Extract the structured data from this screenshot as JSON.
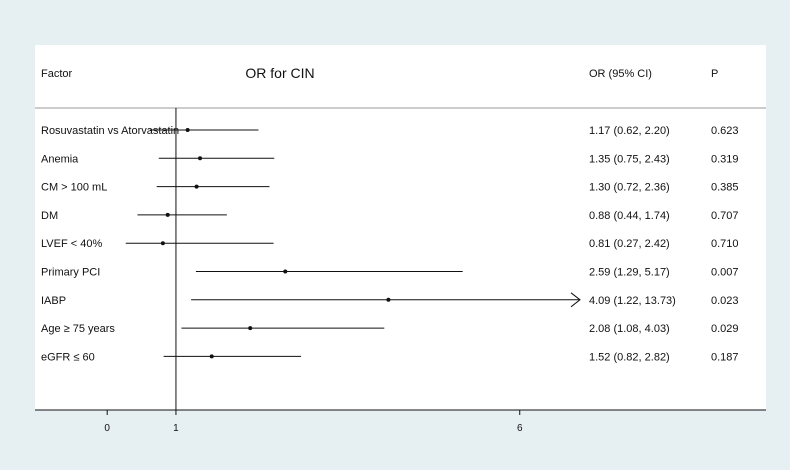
{
  "header": {
    "factor_col": "Factor",
    "or_col": "OR (95% CI)",
    "p_col": "P"
  },
  "chart_data": {
    "type": "forest",
    "title": "OR for CIN",
    "reference_line": 1,
    "x_ticks": [
      0,
      1,
      6
    ],
    "x_range": [
      -1.05,
      7.4
    ],
    "rows": [
      {
        "label": "Rosuvastatin vs Atorvastatin",
        "or": 1.17,
        "lo": 0.62,
        "hi": 2.2,
        "ci_text": "1.17 (0.62, 2.20)",
        "p": "0.623"
      },
      {
        "label": "Anemia",
        "or": 1.35,
        "lo": 0.75,
        "hi": 2.43,
        "ci_text": "1.35 (0.75, 2.43)",
        "p": "0.319"
      },
      {
        "label": "CM > 100 mL",
        "or": 1.3,
        "lo": 0.72,
        "hi": 2.36,
        "ci_text": "1.30 (0.72, 2.36)",
        "p": "0.385"
      },
      {
        "label": "DM",
        "or": 0.88,
        "lo": 0.44,
        "hi": 1.74,
        "ci_text": "0.88 (0.44, 1.74)",
        "p": "0.707"
      },
      {
        "label": "LVEF < 40%",
        "or": 0.81,
        "lo": 0.27,
        "hi": 2.42,
        "ci_text": "0.81 (0.27, 2.42)",
        "p": "0.710"
      },
      {
        "label": "Primary PCI",
        "or": 2.59,
        "lo": 1.29,
        "hi": 5.17,
        "ci_text": "2.59 (1.29, 5.17)",
        "p": "0.007"
      },
      {
        "label": "IABP",
        "or": 4.09,
        "lo": 1.22,
        "hi": 13.73,
        "ci_text": "4.09 (1.22, 13.73)",
        "p": "0.023",
        "truncated": true
      },
      {
        "label": "Age ≥ 75 years",
        "or": 2.08,
        "lo": 1.08,
        "hi": 4.03,
        "ci_text": "2.08 (1.08, 4.03)",
        "p": "0.029"
      },
      {
        "label": "eGFR ≤ 60",
        "or": 1.52,
        "lo": 0.82,
        "hi": 2.82,
        "ci_text": "1.52 (0.82, 2.82)",
        "p": "0.187"
      }
    ]
  }
}
